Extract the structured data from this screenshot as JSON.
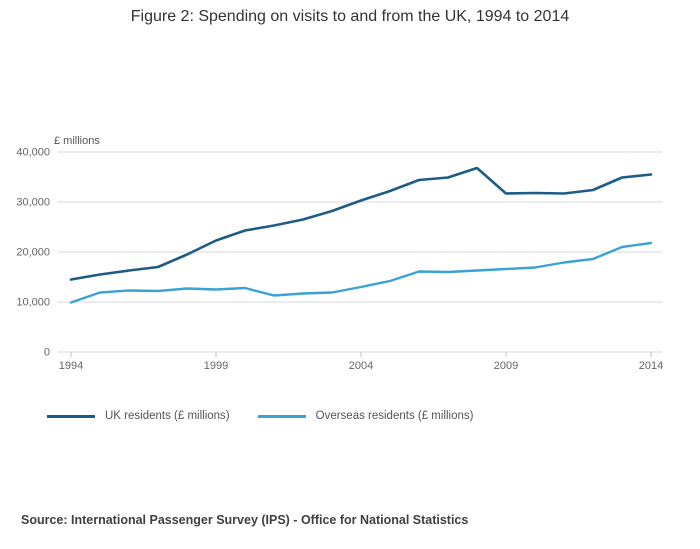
{
  "title": "Figure 2: Spending on visits to and from the UK, 1994 to 2014",
  "source": "Source: International Passenger Survey (IPS) - Office for National Statistics",
  "colors": {
    "uk_residents": "#1d5c87",
    "overseas_residents": "#3ba2d6",
    "gridline": "#d9d9d9"
  },
  "chart_data": {
    "type": "line",
    "title": "Figure 2: Spending on visits to and from the UK, 1994 to 2014",
    "xlabel": "",
    "ylabel": "£ millions",
    "ylim": [
      0,
      40000
    ],
    "yticks": [
      0,
      10000,
      20000,
      30000,
      40000
    ],
    "xticks": [
      1994,
      1999,
      2004,
      2009,
      2014
    ],
    "grid": "horizontal",
    "legend_position": "bottom",
    "x": [
      1994,
      1995,
      1996,
      1997,
      1998,
      1999,
      2000,
      2001,
      2002,
      2003,
      2004,
      2005,
      2006,
      2007,
      2008,
      2009,
      2010,
      2011,
      2012,
      2013,
      2014
    ],
    "series": [
      {
        "name": "UK residents (£ millions)",
        "color": "#1d5c87",
        "stroke_width": 2.6,
        "values": [
          14500,
          15500,
          16300,
          17000,
          19500,
          22300,
          24300,
          25300,
          26500,
          28200,
          30300,
          32200,
          34400,
          34900,
          36800,
          31700,
          31800,
          31700,
          32400,
          34900,
          35500
        ]
      },
      {
        "name": "Overseas residents (£ millions)",
        "color": "#3ba2d6",
        "stroke_width": 2.4,
        "values": [
          9900,
          11900,
          12300,
          12200,
          12700,
          12500,
          12800,
          11300,
          11700,
          11900,
          13000,
          14200,
          16100,
          16000,
          16300,
          16600,
          16900,
          17900,
          18600,
          21000,
          21800
        ]
      }
    ]
  }
}
